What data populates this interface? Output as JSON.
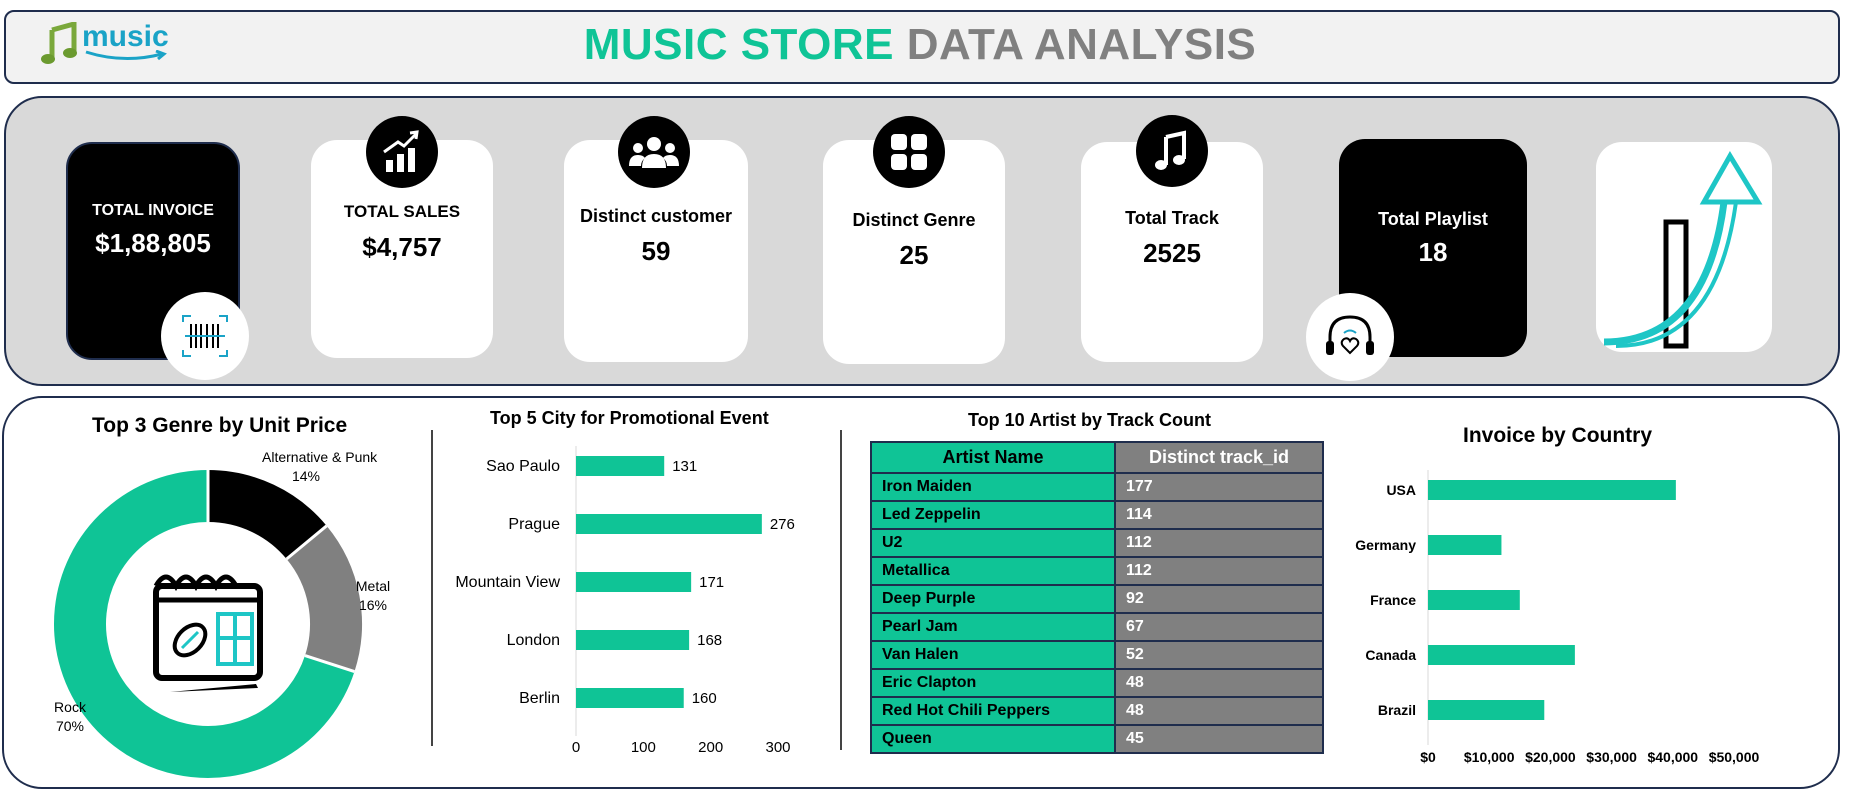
{
  "header": {
    "title_part1": "MUSIC STORE",
    "title_part2": "DATA ANALYSIS",
    "logo_text": "music"
  },
  "kpis": {
    "total_invoice": {
      "label": "TOTAL INVOICE",
      "value": "$1,88,805"
    },
    "total_sales": {
      "label": "TOTAL SALES",
      "value": "$4,757"
    },
    "distinct_customer": {
      "label": "Distinct customer",
      "value": "59"
    },
    "distinct_genre": {
      "label": "Distinct Genre",
      "value": "25"
    },
    "total_track": {
      "label": "Total Track",
      "value": "2525"
    },
    "total_playlist": {
      "label": "Total Playlist",
      "value": "18"
    }
  },
  "colors": {
    "accent": "#0fc496",
    "gray": "#808080",
    "dark": "#000000",
    "border": "#1f2d4d"
  },
  "chart_data": [
    {
      "type": "pie",
      "title": "Top 3 Genre by Unit Price",
      "categories": [
        "Alternative & Punk",
        "Metal",
        "Rock"
      ],
      "values": [
        14,
        16,
        70
      ],
      "value_labels": [
        "14%",
        "16%",
        "70%"
      ],
      "colors": [
        "#000000",
        "#808080",
        "#0fc496"
      ],
      "donut": true
    },
    {
      "type": "bar",
      "orientation": "horizontal",
      "title": "Top 5 City for Promotional Event",
      "categories": [
        "Sao Paulo",
        "Prague",
        "Mountain View",
        "London",
        "Berlin"
      ],
      "values": [
        131,
        276,
        171,
        168,
        160
      ],
      "xlim": [
        0,
        300
      ],
      "xticks": [
        "0",
        "100",
        "200",
        "300"
      ]
    },
    {
      "type": "table",
      "title": "Top 10 Artist by Track Count",
      "columns": [
        "Artist Name",
        "Distinct track_id"
      ],
      "rows": [
        [
          "Iron Maiden",
          "177"
        ],
        [
          "Led Zeppelin",
          "114"
        ],
        [
          "U2",
          "112"
        ],
        [
          "Metallica",
          "112"
        ],
        [
          "Deep Purple",
          "92"
        ],
        [
          "Pearl Jam",
          "67"
        ],
        [
          "Van Halen",
          "52"
        ],
        [
          "Eric Clapton",
          "48"
        ],
        [
          "Red Hot Chili Peppers",
          "48"
        ],
        [
          "Queen",
          "45"
        ]
      ]
    },
    {
      "type": "bar",
      "orientation": "horizontal",
      "title": "Invoice by Country",
      "categories": [
        "USA",
        "Germany",
        "France",
        "Canada",
        "Brazil"
      ],
      "values": [
        40500,
        12000,
        15000,
        24000,
        19000
      ],
      "xlim": [
        0,
        50000
      ],
      "xticks": [
        "$0",
        "$10,000",
        "$20,000",
        "$30,000",
        "$40,000",
        "$50,000"
      ]
    }
  ]
}
